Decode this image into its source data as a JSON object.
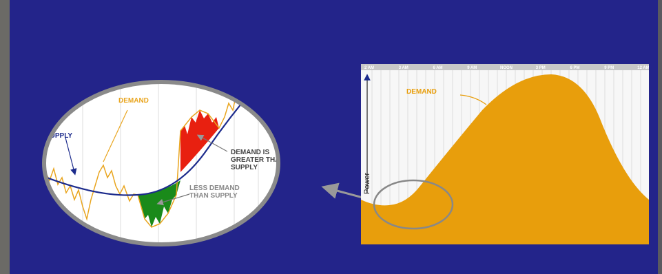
{
  "left_panel": {
    "demand_label": "DEMAND",
    "supply_label": "SUPPLY",
    "excess_label": [
      "DEMAND IS",
      "GREATER THAN",
      "SUPPLY"
    ],
    "shortfall_label": [
      "LESS DEMAND",
      "THAN SUPPLY"
    ]
  },
  "right_panel": {
    "time_labels": [
      "2 AM",
      "3 AM",
      "6 AM",
      "9 AM",
      "NOON",
      "3 PM",
      "6 PM",
      "9 PM",
      "12 AM"
    ],
    "demand_label": "DEMAND",
    "y_axis_label": "Power"
  }
}
